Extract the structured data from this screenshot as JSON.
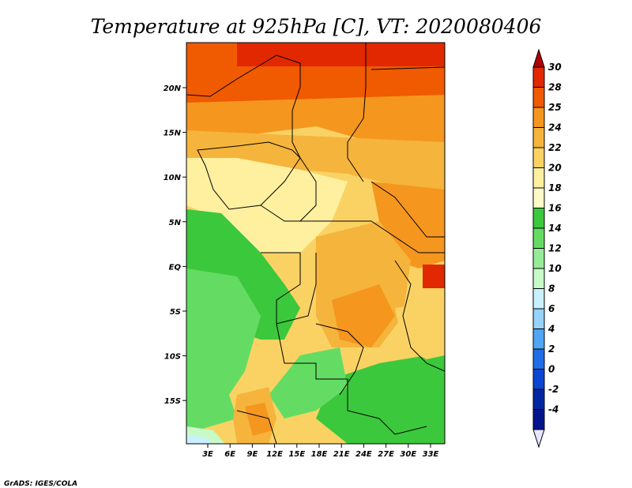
{
  "title": "Temperature at 925hPa [C], VT: 2020080406",
  "credit": "GrADS: IGES/COLA",
  "map": {
    "lon_range": [
      0,
      35
    ],
    "lat_range": [
      -20,
      25
    ],
    "lon_ticks": [
      "3E",
      "6E",
      "9E",
      "12E",
      "15E",
      "18E",
      "21E",
      "24E",
      "27E",
      "30E",
      "33E"
    ],
    "lat_ticks": [
      "20N",
      "15N",
      "10N",
      "5N",
      "EQ",
      "5S",
      "10S",
      "15S"
    ]
  },
  "colorbar": {
    "levels": [
      "30",
      "28",
      "25",
      "24",
      "22",
      "20",
      "18",
      "16",
      "14",
      "12",
      "10",
      "8",
      "6",
      "4",
      "2",
      "0",
      "-2",
      "-4"
    ],
    "colors": [
      "#b40000",
      "#e12800",
      "#f05a00",
      "#f5961e",
      "#f5b43c",
      "#fad264",
      "#fff0a0",
      "#fff9c8",
      "#3cc83c",
      "#64dc64",
      "#96eb96",
      "#c8fac8",
      "#c8f0ff",
      "#96d2fa",
      "#50a5f5",
      "#1e6ee6",
      "#0a46d2",
      "#0028a0",
      "#00148c",
      "#e6e6ff"
    ]
  }
}
